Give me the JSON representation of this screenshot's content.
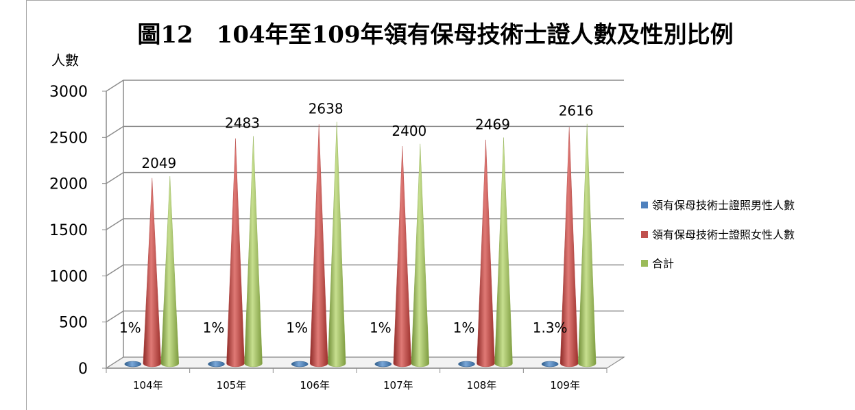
{
  "chart_data": {
    "type": "bar",
    "title": "圖12　104年至109年領有保母技術士證人數及性別比例",
    "ylabel": "人數",
    "xlabel": "",
    "ylim": [
      0,
      3000
    ],
    "yticks": [
      0,
      500,
      1000,
      1500,
      2000,
      2500,
      3000
    ],
    "categories": [
      "104年",
      "105年",
      "106年",
      "107年",
      "108年",
      "109年"
    ],
    "series": [
      {
        "name": "領有保母技術士證照男性人數",
        "color": "#4f81bd",
        "values": [
          20,
          25,
          26,
          24,
          25,
          34
        ]
      },
      {
        "name": "領有保母技術士證照女性人數",
        "color": "#c0504d",
        "values": [
          2029,
          2458,
          2612,
          2376,
          2444,
          2582
        ]
      },
      {
        "name": "合計",
        "color": "#9bbb59",
        "values": [
          2049,
          2483,
          2638,
          2400,
          2469,
          2616
        ]
      }
    ],
    "data_labels": {
      "male_percent": [
        "1%",
        "1%",
        "1%",
        "1%",
        "1%",
        "1.3%"
      ],
      "total": [
        "2049",
        "2483",
        "2638",
        "2400",
        "2469",
        "2616"
      ]
    },
    "legend_position": "right",
    "grid": true,
    "shape": "cone-3d"
  }
}
